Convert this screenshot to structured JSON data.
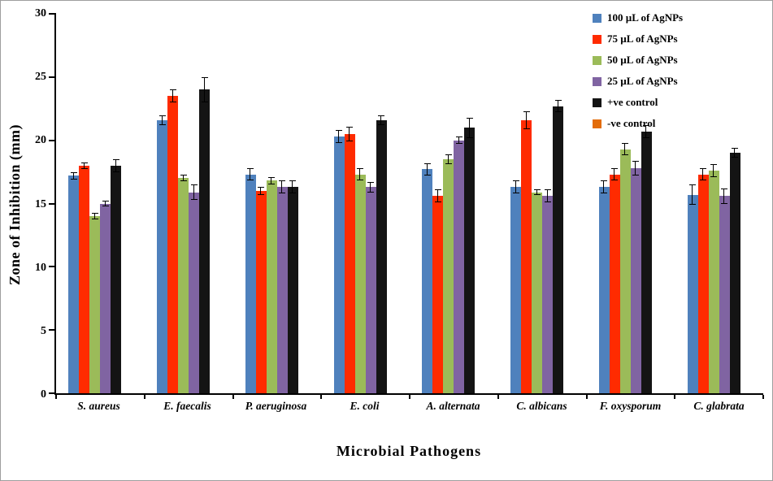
{
  "chart_data": {
    "type": "bar",
    "title": "",
    "xlabel": "Microbial Pathogens",
    "ylabel": "Zone of Inhibition (mm)",
    "ylim": [
      0,
      30
    ],
    "yticks": [
      0,
      5,
      10,
      15,
      20,
      25,
      30
    ],
    "grid": false,
    "legend_position": "top-right",
    "categories": [
      "S. aureus",
      "E. faecalis",
      "P. aeruginosa",
      "E. coli",
      "A. alternata",
      "C. albicans",
      "F. oxysporum",
      "C. glabrata"
    ],
    "series": [
      {
        "name": "100 µL of AgNPs",
        "color": "#4F81BD",
        "values": [
          17.2,
          21.6,
          17.3,
          20.3,
          17.7,
          16.3,
          16.3,
          15.7
        ],
        "errors": [
          0.3,
          0.4,
          0.5,
          0.5,
          0.5,
          0.5,
          0.5,
          0.8
        ]
      },
      {
        "name": "75 µL of AgNPs",
        "color": "#FF2B00",
        "values": [
          18.0,
          23.5,
          16.0,
          20.5,
          15.6,
          21.6,
          17.3,
          17.3
        ],
        "errors": [
          0.25,
          0.5,
          0.3,
          0.6,
          0.5,
          0.7,
          0.5,
          0.5
        ]
      },
      {
        "name": "50 µL of AgNPs",
        "color": "#9BBB59",
        "values": [
          14.0,
          17.0,
          16.8,
          17.3,
          18.5,
          15.9,
          19.3,
          17.6
        ],
        "errors": [
          0.25,
          0.25,
          0.3,
          0.5,
          0.4,
          0.25,
          0.5,
          0.5
        ]
      },
      {
        "name": "25 µL of AgNPs",
        "color": "#8064A2",
        "values": [
          15.0,
          15.9,
          16.3,
          16.3,
          20.0,
          15.6,
          17.8,
          15.6
        ],
        "errors": [
          0.25,
          0.6,
          0.5,
          0.4,
          0.3,
          0.5,
          0.6,
          0.6
        ]
      },
      {
        "name": "+ve control",
        "color": "#141414",
        "values": [
          18.0,
          24.0,
          16.3,
          21.6,
          21.0,
          22.7,
          20.7,
          19.0
        ],
        "errors": [
          0.5,
          1.0,
          0.5,
          0.4,
          0.8,
          0.5,
          0.5,
          0.4
        ]
      },
      {
        "name": "-ve control",
        "color": "#E36C09",
        "values": [
          0,
          0,
          0,
          0,
          0,
          0,
          0,
          0
        ],
        "errors": [
          0,
          0,
          0,
          0,
          0,
          0,
          0,
          0
        ]
      }
    ]
  }
}
